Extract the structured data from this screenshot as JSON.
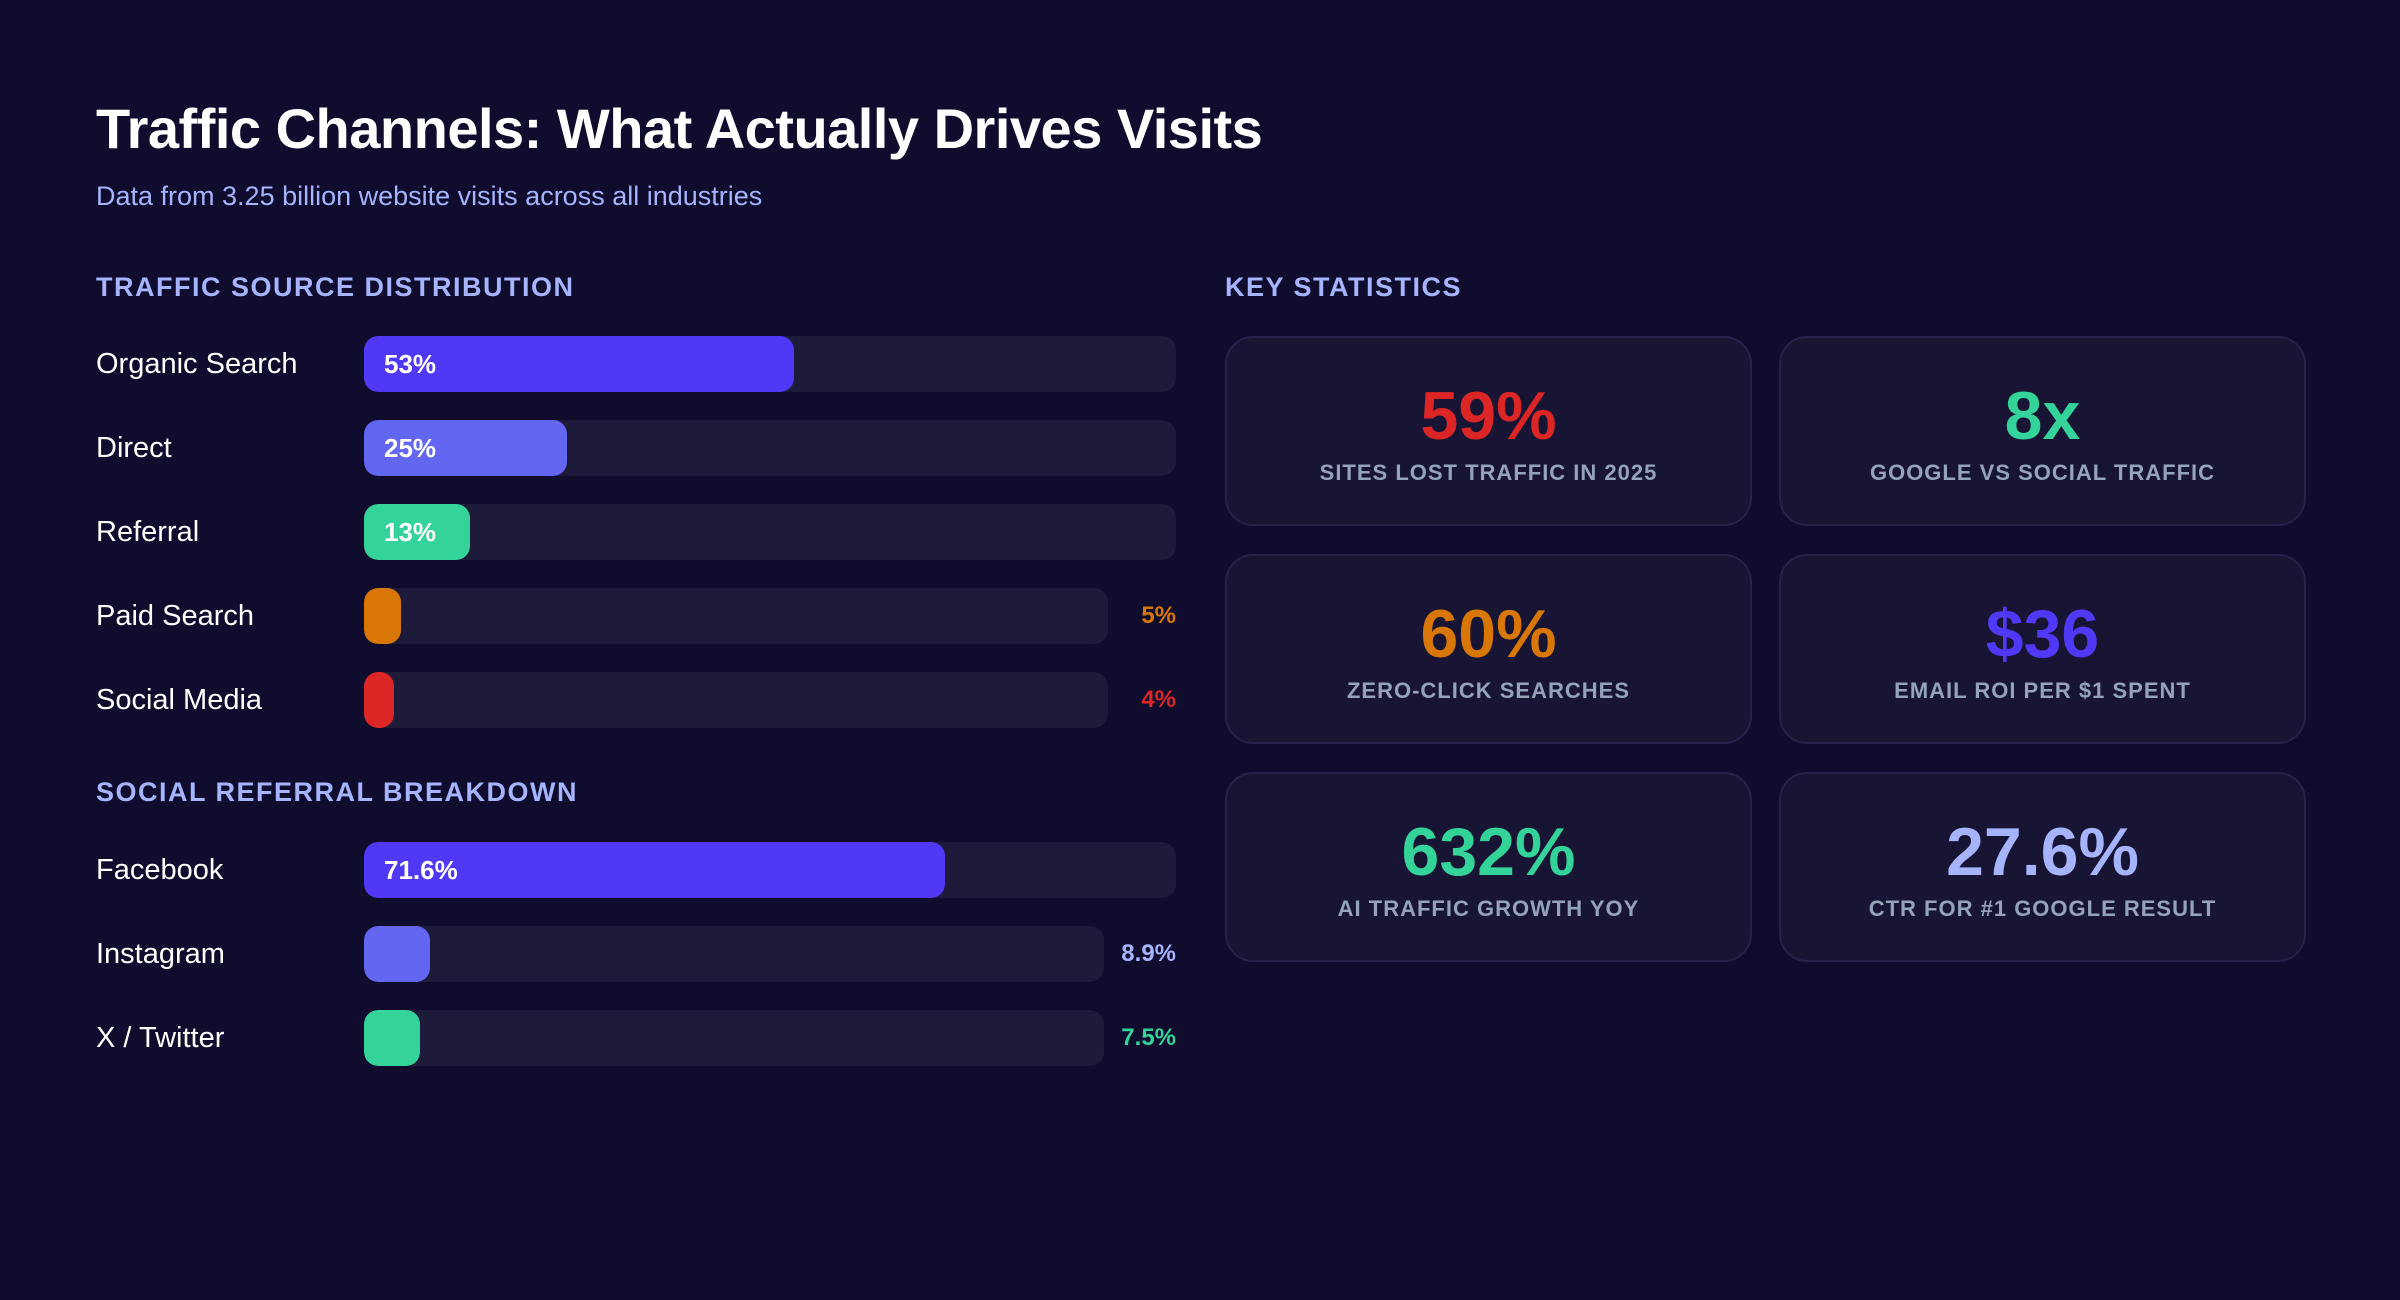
{
  "header": {
    "title": "Traffic Channels: What Actually Drives Visits",
    "subtitle": "Data from 3.25 billion website visits across all industries"
  },
  "chart_data": [
    {
      "type": "bar",
      "orientation": "horizontal",
      "title": "TRAFFIC SOURCE DISTRIBUTION",
      "xlim": [
        0,
        100
      ],
      "categories": [
        "Organic Search",
        "Direct",
        "Referral",
        "Paid Search",
        "Social Media"
      ],
      "values": [
        53,
        25,
        13,
        5,
        4
      ],
      "labels": [
        "53%",
        "25%",
        "13%",
        "5%",
        "4%"
      ],
      "colors": [
        "#4f39f6",
        "#6366f1",
        "#34d399",
        "#d97706",
        "#dc2626"
      ],
      "label_outside": [
        false,
        false,
        false,
        true,
        true
      ]
    },
    {
      "type": "bar",
      "orientation": "horizontal",
      "title": "SOCIAL REFERRAL BREAKDOWN",
      "xlim": [
        0,
        100
      ],
      "categories": [
        "Facebook",
        "Instagram",
        "X / Twitter"
      ],
      "values": [
        71.6,
        8.9,
        7.5
      ],
      "labels": [
        "71.6%",
        "8.9%",
        "7.5%"
      ],
      "colors": [
        "#4f39f6",
        "#6366f1",
        "#34d399"
      ],
      "label_colors": [
        "#ffffff",
        "#a5b4fc",
        "#34d399"
      ],
      "label_outside": [
        false,
        true,
        true
      ]
    }
  ],
  "stats": {
    "title": "KEY STATISTICS",
    "items": [
      {
        "value": "59%",
        "label": "SITES LOST TRAFFIC IN 2025",
        "color": "#dc2626"
      },
      {
        "value": "8x",
        "label": "GOOGLE VS SOCIAL TRAFFIC",
        "color": "#34d399"
      },
      {
        "value": "60%",
        "label": "ZERO-CLICK SEARCHES",
        "color": "#d97706"
      },
      {
        "value": "$36",
        "label": "EMAIL ROI PER $1 SPENT",
        "color": "#4f39f6"
      },
      {
        "value": "632%",
        "label": "AI TRAFFIC GROWTH YOY",
        "color": "#34d399"
      },
      {
        "value": "27.6%",
        "label": "CTR FOR #1 GOOGLE RESULT",
        "color": "#a5b4fc"
      }
    ]
  }
}
